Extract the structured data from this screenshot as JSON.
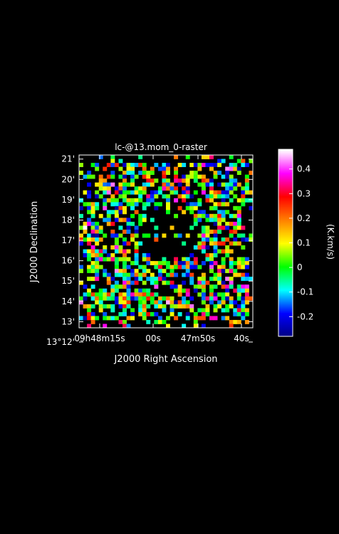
{
  "chart_data": {
    "type": "heatmap",
    "title": "lc-@13.mom_0-raster",
    "xlabel": "J2000 Right Ascension",
    "ylabel": "J2000 Declination",
    "x_ticks": [
      {
        "text": "09h48m15s",
        "ra": "09:48:15"
      },
      {
        "text": "00s",
        "ra": "09:48:00"
      },
      {
        "text": "47m50s",
        "ra": "09:47:50"
      },
      {
        "text": "40s",
        "ra": "09:47:40"
      }
    ],
    "y_ticks": [
      "13°12'",
      "13'",
      "14'",
      "15'",
      "16'",
      "17'",
      "18'",
      "19'",
      "20'",
      "21'"
    ],
    "colorbar": {
      "label": "(K.km/s)",
      "ticks": [
        "0.4",
        "0.3",
        "0.2",
        "0.1",
        "0",
        "-0.1",
        "-0.2"
      ],
      "range": [
        -0.28,
        0.48
      ],
      "colormap": [
        "#000080",
        "#0000ff",
        "#00ffff",
        "#00ff00",
        "#ffff00",
        "#ff8000",
        "#ff0000",
        "#ff00ff",
        "#ffffff"
      ]
    },
    "map_extent": {
      "dec_min_arcmin": 12.7,
      "dec_max_arcmin": 21.2,
      "grid_x": 44,
      "grid_y": 44
    },
    "blank_region_note": "central hole with no data",
    "value_note": "randomized raster of moment-0 values between -0.28 and 0.48"
  }
}
